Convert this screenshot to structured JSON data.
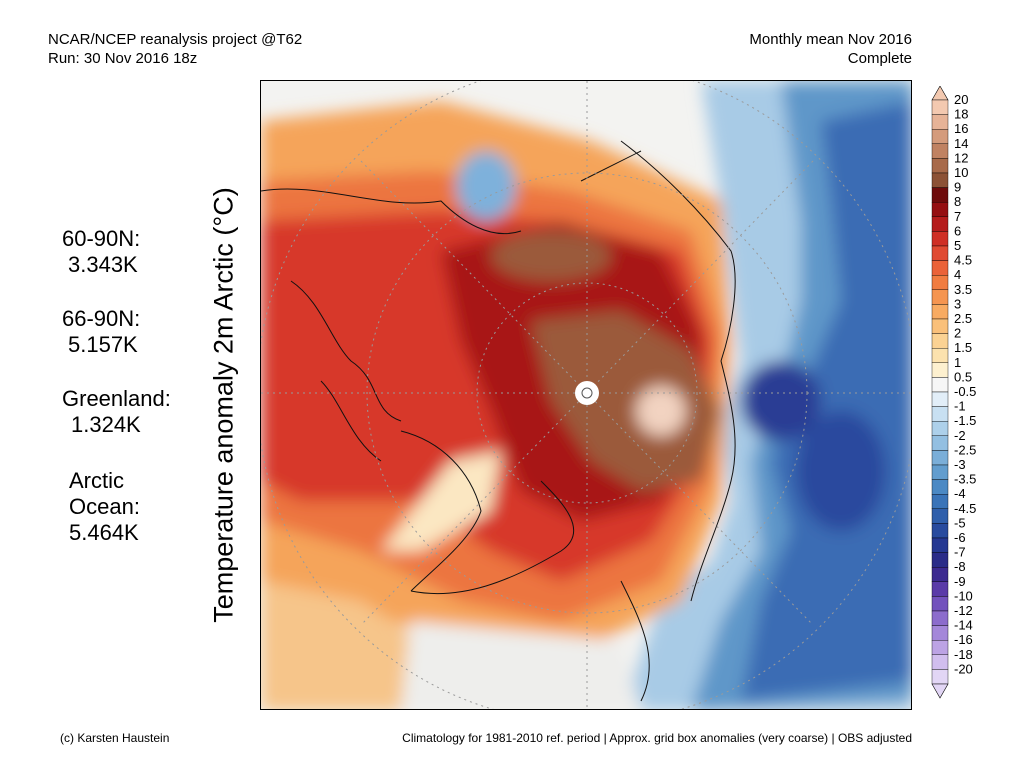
{
  "header": {
    "line1_left": "NCAR/NCEP reanalysis project @T62",
    "line2_left": "Run: 30 Nov 2016 18z",
    "line1_right": "Monthly mean Nov 2016",
    "line2_right": "Complete"
  },
  "stats": {
    "s1_label": "60-90N:",
    "s1_value": "3.343K",
    "s2_label": "66-90N:",
    "s2_value": "5.157K",
    "s3_label": "Greenland:",
    "s3_value": "1.324K",
    "s4_label_a": "Arctic",
    "s4_label_b": "Ocean:",
    "s4_value": "5.464K"
  },
  "map": {
    "vertical_title": "Temperature anomaly 2m Arctic (°C)"
  },
  "colorbar": {
    "levels": [
      {
        "label": "20",
        "color": "#f3c9b0"
      },
      {
        "label": "18",
        "color": "#e6b397"
      },
      {
        "label": "16",
        "color": "#d49b7c"
      },
      {
        "label": "14",
        "color": "#c08262"
      },
      {
        "label": "12",
        "color": "#a86a4a"
      },
      {
        "label": "10",
        "color": "#8c5236"
      },
      {
        "label": "9",
        "color": "#6e0c0c"
      },
      {
        "label": "8",
        "color": "#950f12"
      },
      {
        "label": "7",
        "color": "#b51c1c"
      },
      {
        "label": "6",
        "color": "#cf2f25"
      },
      {
        "label": "5",
        "color": "#e04a32"
      },
      {
        "label": "4.5",
        "color": "#ea6238"
      },
      {
        "label": "4",
        "color": "#f07c40"
      },
      {
        "label": "3.5",
        "color": "#f59550"
      },
      {
        "label": "3",
        "color": "#f8ab62"
      },
      {
        "label": "2.5",
        "color": "#fac07a"
      },
      {
        "label": "2",
        "color": "#fbd293"
      },
      {
        "label": "1.5",
        "color": "#fce2ae"
      },
      {
        "label": "1",
        "color": "#fdf0cf"
      },
      {
        "label": "0.5",
        "color": "#f6f6f6"
      },
      {
        "label": "-0.5",
        "color": "#e2eef8"
      },
      {
        "label": "-1",
        "color": "#c8e0f2"
      },
      {
        "label": "-1.5",
        "color": "#add0ea"
      },
      {
        "label": "-2",
        "color": "#93bfe1"
      },
      {
        "label": "-2.5",
        "color": "#7aaed8"
      },
      {
        "label": "-3",
        "color": "#629dce"
      },
      {
        "label": "-3.5",
        "color": "#4b89c4"
      },
      {
        "label": "-4",
        "color": "#3a74b8"
      },
      {
        "label": "-4.5",
        "color": "#2f5fab"
      },
      {
        "label": "-5",
        "color": "#284b9e"
      },
      {
        "label": "-6",
        "color": "#253892"
      },
      {
        "label": "-7",
        "color": "#2a2c88"
      },
      {
        "label": "-8",
        "color": "#3c2a90"
      },
      {
        "label": "-9",
        "color": "#5a3aa8"
      },
      {
        "label": "-10",
        "color": "#7352bd"
      },
      {
        "label": "-12",
        "color": "#8c6ccc"
      },
      {
        "label": "-14",
        "color": "#a487d9"
      },
      {
        "label": "-16",
        "color": "#bca3e4"
      },
      {
        "label": "-18",
        "color": "#d1beee"
      },
      {
        "label": "-20",
        "color": "#e2d6f5"
      }
    ]
  },
  "footer": {
    "left": "(c) Karsten Haustein",
    "right": "Climatology for 1981-2010 ref. period | Approx. grid box anomalies (very coarse) | OBS adjusted"
  }
}
